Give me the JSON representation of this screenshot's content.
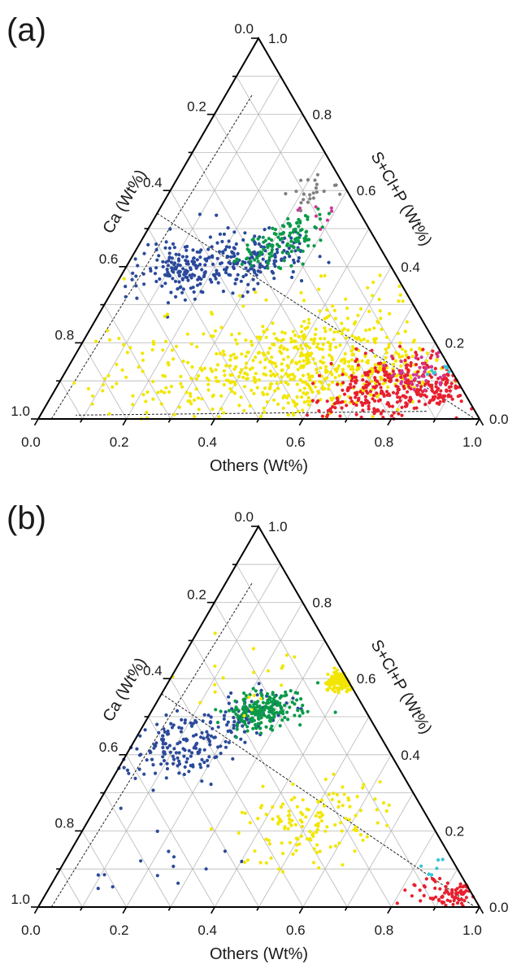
{
  "chart_data": [
    {
      "type": "scatter",
      "subtype": "ternary",
      "panel_label": "(a)",
      "axes": {
        "bottom": {
          "label": "Others (Wt%)",
          "ticks": [
            "0.0",
            "0.2",
            "0.4",
            "0.6",
            "0.8",
            "1.0"
          ]
        },
        "left": {
          "label": "Ca (Wt%)",
          "ticks": [
            "0.2",
            "0.4",
            "0.6",
            "0.8",
            "1.0"
          ]
        },
        "right": {
          "label": "S+Cl+P (Wt%)",
          "ticks": [
            "0.0",
            "0.2",
            "0.4",
            "0.6",
            "0.8",
            "1.0"
          ]
        },
        "apex_label": "0.0",
        "range": [
          0,
          1
        ],
        "grid": true
      },
      "series_colors": {
        "blue": "#2b4a9b",
        "green": "#0a9a48",
        "yellow": "#f2e600",
        "red": "#e8202e",
        "magenta": "#d0369a",
        "gray": "#808080",
        "cyan": "#38c4d8"
      },
      "reference_lines": [
        {
          "style": "dashed",
          "from": {
            "Others": 0.0,
            "SClP": 0.54
          },
          "to": {
            "Others": 0.99,
            "SClP": 0.0
          }
        },
        {
          "style": "dashed",
          "from": {
            "Others": 0.06,
            "SClP": 0.85
          },
          "to": {
            "Others": 0.03,
            "SClP": 0.0
          }
        },
        {
          "style": "dashed",
          "from": {
            "Others": 0.87,
            "SClP": 0.02
          },
          "to": {
            "Others": 0.08,
            "SClP": 0.01
          }
        }
      ],
      "series": [
        {
          "color": "blue",
          "clusters": [
            {
              "Others": 0.15,
              "SClP": 0.4,
              "Ca": 0.45,
              "spread": 0.06,
              "n": 200
            },
            {
              "Others": 0.3,
              "SClP": 0.42,
              "Ca": 0.28,
              "spread": 0.05,
              "n": 120
            }
          ]
        },
        {
          "color": "green",
          "clusters": [
            {
              "Others": 0.3,
              "SClP": 0.45,
              "Ca": 0.25,
              "spread": 0.04,
              "n": 80
            },
            {
              "Others": 0.35,
              "SClP": 0.5,
              "Ca": 0.15,
              "spread": 0.04,
              "n": 40
            }
          ]
        },
        {
          "color": "yellow",
          "clusters": [
            {
              "Others": 0.55,
              "SClP": 0.15,
              "Ca": 0.3,
              "spread": 0.12,
              "n": 500
            },
            {
              "Others": 0.25,
              "SClP": 0.1,
              "Ca": 0.65,
              "spread": 0.1,
              "n": 100
            },
            {
              "Others": 0.75,
              "SClP": 0.12,
              "Ca": 0.13,
              "spread": 0.05,
              "n": 70
            }
          ]
        },
        {
          "color": "red",
          "clusters": [
            {
              "Others": 0.75,
              "SClP": 0.08,
              "Ca": 0.17,
              "spread": 0.07,
              "n": 280
            },
            {
              "Others": 0.88,
              "SClP": 0.08,
              "Ca": 0.04,
              "spread": 0.03,
              "n": 70
            }
          ]
        },
        {
          "color": "magenta",
          "clusters": [
            {
              "Others": 0.82,
              "SClP": 0.12,
              "Ca": 0.06,
              "spread": 0.05,
              "n": 35
            },
            {
              "Others": 0.36,
              "SClP": 0.55,
              "Ca": 0.09,
              "spread": 0.03,
              "n": 8
            }
          ]
        },
        {
          "color": "gray",
          "clusters": [
            {
              "Others": 0.33,
              "SClP": 0.6,
              "Ca": 0.07,
              "spread": 0.03,
              "n": 22
            }
          ]
        },
        {
          "color": "cyan",
          "clusters": [
            {
              "Others": 0.85,
              "SClP": 0.13,
              "Ca": 0.02,
              "spread": 0.02,
              "n": 8
            }
          ]
        }
      ]
    },
    {
      "type": "scatter",
      "subtype": "ternary",
      "panel_label": "(b)",
      "axes": {
        "bottom": {
          "label": "Others (Wt%)",
          "ticks": [
            "0.0",
            "0.2",
            "0.4",
            "0.6",
            "0.8",
            "1.0"
          ]
        },
        "left": {
          "label": "Ca (Wt%)",
          "ticks": [
            "0.2",
            "0.4",
            "0.6",
            "0.8",
            "1.0"
          ]
        },
        "right": {
          "label": "S+Cl+P (Wt%)",
          "ticks": [
            "0.0",
            "0.2",
            "0.4",
            "0.6",
            "0.8",
            "1.0"
          ]
        },
        "apex_label": "0.0",
        "range": [
          0,
          1
        ],
        "grid": true
      },
      "series_colors": {
        "blue": "#2b4a9b",
        "green": "#0a9a48",
        "yellow": "#f2e600",
        "red": "#e8202e",
        "magenta": "#d0369a",
        "gray": "#808080",
        "cyan": "#38c4d8"
      },
      "reference_lines": [
        {
          "style": "dashed",
          "from": {
            "Others": 0.0,
            "SClP": 0.56
          },
          "to": {
            "Others": 0.99,
            "SClP": 0.0
          }
        },
        {
          "style": "dashed",
          "from": {
            "Others": 0.06,
            "SClP": 0.85
          },
          "to": {
            "Others": 0.03,
            "SClP": 0.0
          }
        }
      ],
      "series": [
        {
          "color": "blue",
          "clusters": [
            {
              "Others": 0.12,
              "SClP": 0.42,
              "Ca": 0.46,
              "spread": 0.06,
              "n": 150
            },
            {
              "Others": 0.2,
              "SClP": 0.5,
              "Ca": 0.3,
              "spread": 0.05,
              "n": 70
            },
            {
              "Others": 0.2,
              "SClP": 0.15,
              "Ca": 0.65,
              "spread": 0.1,
              "n": 15
            }
          ]
        },
        {
          "color": "green",
          "clusters": [
            {
              "Others": 0.25,
              "SClP": 0.52,
              "Ca": 0.23,
              "spread": 0.04,
              "n": 200
            }
          ]
        },
        {
          "color": "yellow",
          "clusters": [
            {
              "Others": 0.5,
              "SClP": 0.22,
              "Ca": 0.28,
              "spread": 0.08,
              "n": 140
            },
            {
              "Others": 0.4,
              "SClP": 0.6,
              "Ca": 0.0,
              "spread": 0.02,
              "n": 150
            },
            {
              "Others": 0.15,
              "SClP": 0.6,
              "Ca": 0.25,
              "spread": 0.08,
              "n": 20
            }
          ]
        },
        {
          "color": "red",
          "clusters": [
            {
              "Others": 0.93,
              "SClP": 0.03,
              "Ca": 0.04,
              "spread": 0.02,
              "n": 60
            },
            {
              "Others": 0.85,
              "SClP": 0.05,
              "Ca": 0.1,
              "spread": 0.03,
              "n": 20
            }
          ]
        },
        {
          "color": "cyan",
          "clusters": [
            {
              "Others": 0.85,
              "SClP": 0.1,
              "Ca": 0.05,
              "spread": 0.02,
              "n": 6
            }
          ]
        }
      ]
    }
  ]
}
